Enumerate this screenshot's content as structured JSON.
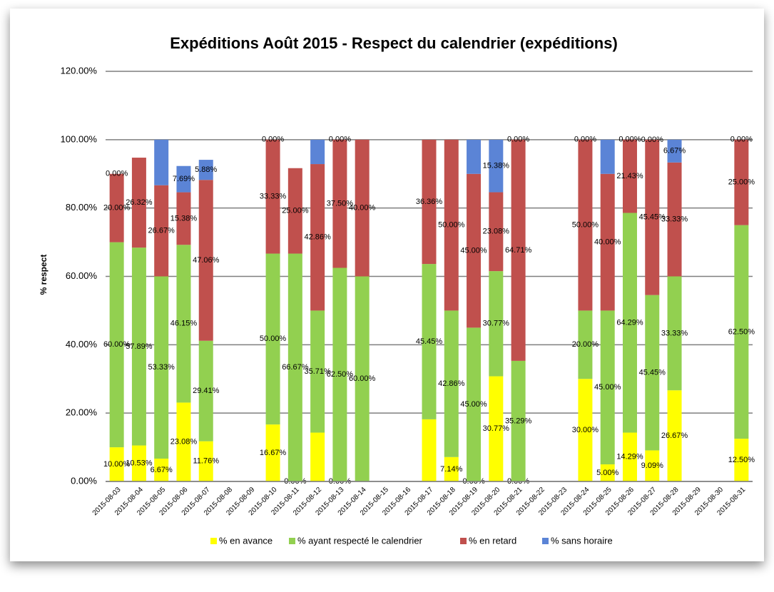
{
  "chart_data": {
    "type": "stacked_bar",
    "title": "Expéditions Août 2015 - Respect du calendrier (expéditions)",
    "y_label": "% respect",
    "categories": [
      "2015-08-03",
      "2015-08-04",
      "2015-08-05",
      "2015-08-06",
      "2015-08-07",
      "2015-08-08",
      "2015-08-09",
      "2015-08-10",
      "2015-08-11",
      "2015-08-12",
      "2015-08-13",
      "2015-08-14",
      "2015-08-15",
      "2015-08-16",
      "2015-08-17",
      "2015-08-18",
      "2015-08-19",
      "2015-08-20",
      "2015-08-21",
      "2015-08-22",
      "2015-08-23",
      "2015-08-24",
      "2015-08-25",
      "2015-08-26",
      "2015-08-27",
      "2015-08-28",
      "2015-08-29",
      "2015-08-30",
      "2015-08-31"
    ],
    "series": [
      {
        "name": "% en avance",
        "color": "#ffff00",
        "values": [
          10,
          10.53,
          6.67,
          23.08,
          11.76,
          null,
          null,
          16.67,
          0,
          14.29,
          0,
          null,
          null,
          null,
          18.18,
          7.14,
          0,
          30.77,
          0,
          null,
          null,
          30,
          5,
          14.29,
          9.09,
          26.67,
          null,
          null,
          12.5
        ],
        "value_labels": [
          "10.00%",
          "10.53%",
          "6.67%",
          "23.08%",
          "11.76%",
          null,
          null,
          "16.67%",
          "0.00%",
          null,
          "0.00%",
          null,
          null,
          null,
          null,
          "7.14%",
          "0.00%",
          "30.77%",
          "0.00%",
          null,
          null,
          "30.00%",
          "5.00%",
          "14.29%",
          "9.09%",
          "26.67%",
          null,
          null,
          "12.50%"
        ]
      },
      {
        "name": "%  ayant respecté le calendrier",
        "color": "#92d050",
        "values": [
          60,
          57.89,
          53.33,
          46.15,
          29.41,
          null,
          null,
          50,
          66.67,
          35.71,
          62.5,
          60,
          null,
          null,
          45.45,
          42.86,
          45,
          30.77,
          35.29,
          null,
          null,
          20,
          45,
          64.29,
          45.45,
          33.33,
          null,
          null,
          62.5
        ],
        "value_labels": [
          "60.00%",
          "57.89%",
          "53.33%",
          "46.15%",
          "29.41%",
          null,
          null,
          "50.00%",
          "66.67%",
          "35.71%",
          "62.50%",
          "60.00%",
          null,
          null,
          "45.45%",
          "42.86%",
          "45.00%",
          "30.77%",
          "35.29%",
          null,
          null,
          "20.00%",
          "45.00%",
          "64.29%",
          "45.45%",
          "33.33%",
          null,
          null,
          "62.50%"
        ]
      },
      {
        "name": "% en retard",
        "color": "#c0504d",
        "values": [
          20,
          26.32,
          26.67,
          15.38,
          47.06,
          null,
          null,
          33.33,
          25,
          42.86,
          37.5,
          40,
          null,
          null,
          36.36,
          50,
          45,
          23.08,
          64.71,
          null,
          null,
          50,
          40,
          21.43,
          45.45,
          33.33,
          null,
          null,
          25
        ],
        "value_labels": [
          "20.00%",
          "26.32%",
          "26.67%",
          "15.38%",
          "47.06%",
          null,
          null,
          "33.33%",
          "25.00%",
          "42.86%",
          "37.50%",
          "40.00%",
          null,
          null,
          "36.36%",
          "50.00%",
          "45.00%",
          "23.08%",
          "64.71%",
          null,
          null,
          "50.00%",
          "40.00%",
          "21.43%",
          "45.45%",
          "33.33%",
          null,
          null,
          "25.00%"
        ]
      },
      {
        "name": "% sans horaire",
        "color": "#5b84d6",
        "values": [
          0,
          null,
          13.33,
          7.69,
          5.88,
          null,
          null,
          0,
          null,
          7.14,
          0,
          null,
          null,
          null,
          null,
          null,
          10,
          15.38,
          0,
          null,
          null,
          0,
          10,
          0,
          0,
          6.67,
          null,
          null,
          0
        ],
        "value_labels": [
          "0.00%",
          null,
          null,
          "7.69%",
          "5.88%",
          null,
          null,
          "0.00%",
          null,
          null,
          "0.00%",
          null,
          null,
          null,
          null,
          null,
          null,
          "15.38%",
          "0.00%",
          null,
          null,
          "0.00%",
          null,
          "0.00%",
          "0.00%",
          "6.67%",
          null,
          null,
          "0.00%"
        ]
      }
    ],
    "ylim": [
      0,
      120
    ],
    "yticks": [
      {
        "value": 0,
        "label": "0.00%"
      },
      {
        "value": 20,
        "label": "20.00%"
      },
      {
        "value": 40,
        "label": "40.00%"
      },
      {
        "value": 60,
        "label": "60.00%"
      },
      {
        "value": 80,
        "label": "80.00%"
      },
      {
        "value": 100,
        "label": "100.00%"
      },
      {
        "value": 120,
        "label": "120.00%"
      }
    ],
    "grid": true,
    "legend": "bottom"
  }
}
